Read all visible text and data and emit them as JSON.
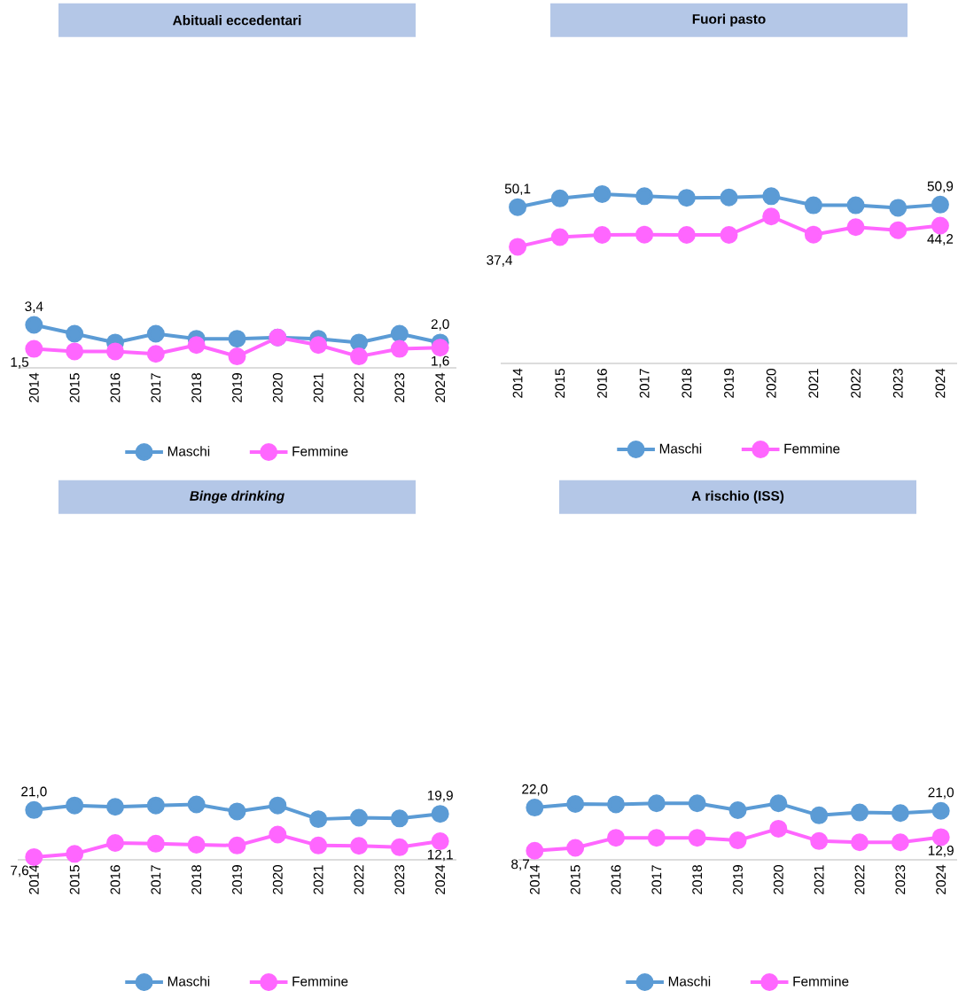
{
  "chart_data": [
    {
      "type": "line",
      "title": "Abituali eccedentari",
      "categories": [
        "2014",
        "2015",
        "2016",
        "2017",
        "2018",
        "2019",
        "2020",
        "2021",
        "2022",
        "2023",
        "2024"
      ],
      "tick_labels": "x",
      "legend": "bottom",
      "marker": "circle",
      "line_style": "solid",
      "series": [
        {
          "name": "Maschi",
          "color": "#5b9bd5",
          "values": [
            3.4,
            2.7,
            2.0,
            2.7,
            2.3,
            2.3,
            2.4,
            2.3,
            2.0,
            2.7,
            2.0
          ],
          "value_labels": [
            "3,4",
            null,
            null,
            null,
            null,
            null,
            null,
            null,
            null,
            null,
            "2,0"
          ]
        },
        {
          "name": "Femmine",
          "color": "#ff66ff",
          "values": [
            1.5,
            1.3,
            1.3,
            1.1,
            1.8,
            0.9,
            2.4,
            1.8,
            0.9,
            1.5,
            1.6
          ],
          "value_labels": [
            "1,5",
            null,
            null,
            null,
            null,
            null,
            null,
            null,
            null,
            null,
            "1,6"
          ]
        }
      ]
    },
    {
      "type": "line",
      "title": "Fuori pasto",
      "categories": [
        "2014",
        "2015",
        "2016",
        "2017",
        "2018",
        "2019",
        "2020",
        "2021",
        "2022",
        "2023",
        "2024"
      ],
      "tick_labels": "x",
      "legend": "bottom",
      "marker": "circle",
      "line_style": "solid",
      "series": [
        {
          "name": "Maschi",
          "color": "#5b9bd5",
          "values": [
            50.1,
            52.9,
            54.3,
            53.6,
            53.1,
            53.2,
            53.6,
            50.7,
            50.7,
            49.9,
            50.9
          ],
          "value_labels": [
            "50,1",
            null,
            null,
            null,
            null,
            null,
            null,
            null,
            null,
            null,
            "50,9"
          ]
        },
        {
          "name": "Femmine",
          "color": "#ff66ff",
          "values": [
            37.4,
            40.5,
            41.2,
            41.3,
            41.2,
            41.2,
            47.1,
            41.3,
            43.7,
            42.7,
            44.2
          ],
          "value_labels": [
            "37,4",
            null,
            null,
            null,
            null,
            null,
            null,
            null,
            null,
            null,
            "44,2"
          ]
        }
      ]
    },
    {
      "type": "line",
      "title": "*Binge drinking*",
      "categories": [
        "2014",
        "2015",
        "2016",
        "2017",
        "2018",
        "2019",
        "2020",
        "2021",
        "2022",
        "2023",
        "2024"
      ],
      "tick_labels": "x",
      "legend": "bottom",
      "marker": "circle",
      "line_style": "solid",
      "series": [
        {
          "name": "Maschi",
          "color": "#5b9bd5",
          "values": [
            21.0,
            22.3,
            21.9,
            22.3,
            22.6,
            20.6,
            22.3,
            18.4,
            18.8,
            18.6,
            19.9
          ],
          "value_labels": [
            "21,0",
            null,
            null,
            null,
            null,
            null,
            null,
            null,
            null,
            null,
            "19,9"
          ]
        },
        {
          "name": "Femmine",
          "color": "#ff66ff",
          "values": [
            7.6,
            8.5,
            11.6,
            11.4,
            11.1,
            10.9,
            14.0,
            10.9,
            10.8,
            10.4,
            12.1
          ],
          "value_labels": [
            "7,6",
            null,
            null,
            null,
            null,
            null,
            null,
            null,
            null,
            null,
            "12,1"
          ]
        }
      ]
    },
    {
      "type": "line",
      "title": "A rischio (ISS)",
      "categories": [
        "2014",
        "2015",
        "2016",
        "2017",
        "2018",
        "2019",
        "2020",
        "2021",
        "2022",
        "2023",
        "2024"
      ],
      "tick_labels": "x",
      "legend": "bottom",
      "marker": "circle",
      "line_style": "solid",
      "series": [
        {
          "name": "Maschi",
          "color": "#5b9bd5",
          "values": [
            22.0,
            23.1,
            23.0,
            23.3,
            23.3,
            21.2,
            23.3,
            19.6,
            20.5,
            20.3,
            21.0
          ],
          "value_labels": [
            "22,0",
            null,
            null,
            null,
            null,
            null,
            null,
            null,
            null,
            null,
            "21,0"
          ]
        },
        {
          "name": "Femmine",
          "color": "#ff66ff",
          "values": [
            8.7,
            9.6,
            12.7,
            12.7,
            12.7,
            11.9,
            15.5,
            11.7,
            11.3,
            11.3,
            12.9
          ],
          "value_labels": [
            "8,7",
            null,
            null,
            null,
            null,
            null,
            null,
            null,
            null,
            null,
            "12,9"
          ]
        }
      ]
    }
  ]
}
